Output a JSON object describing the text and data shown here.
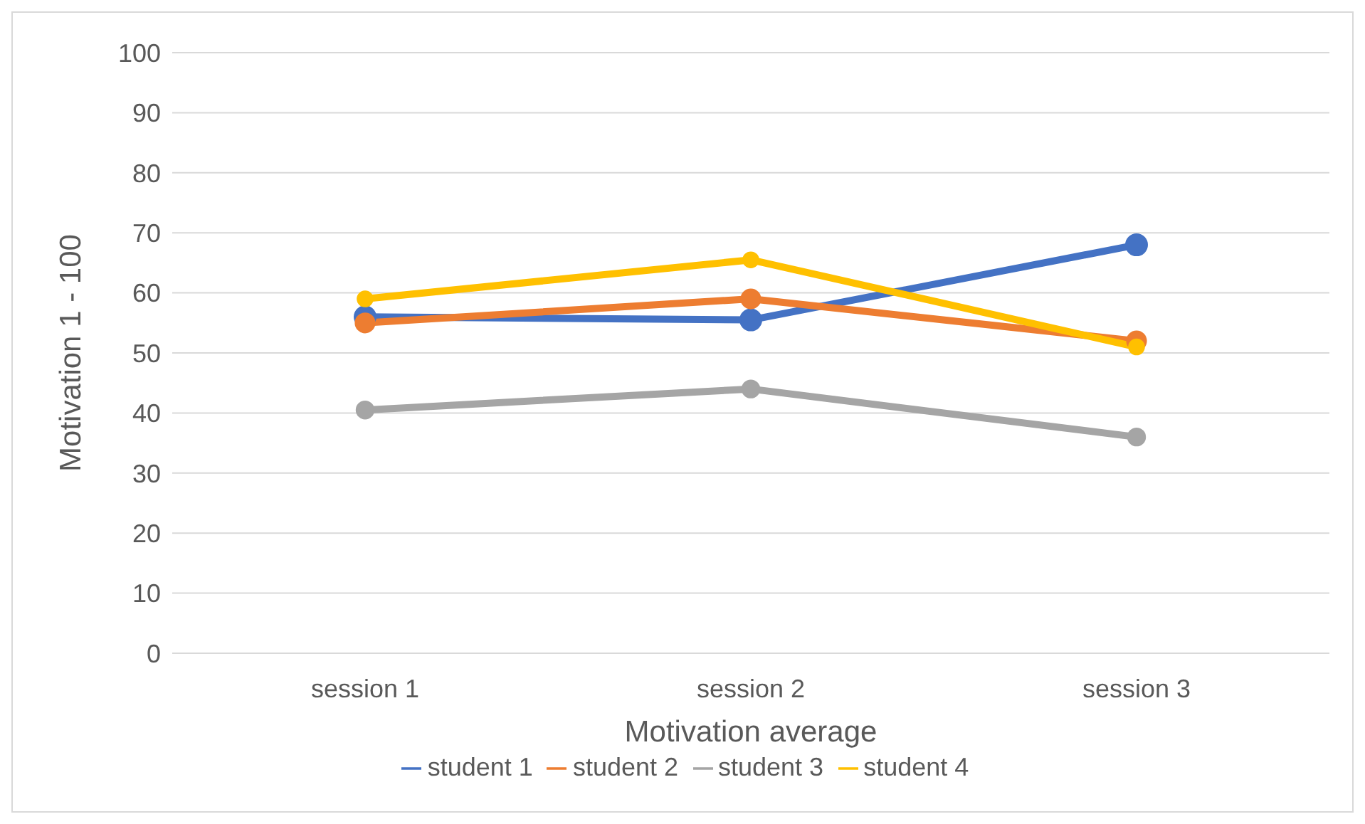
{
  "chart_data": {
    "type": "line",
    "xlabel": "Motivation average",
    "ylabel": "Motivation 1 - 100",
    "categories": [
      "session 1",
      "session 2",
      "session 3"
    ],
    "series": [
      {
        "name": "student 1",
        "color": "#4472c4",
        "values": [
          56,
          55.5,
          68
        ]
      },
      {
        "name": "student 2",
        "color": "#ed7d31",
        "values": [
          55,
          59,
          52
        ]
      },
      {
        "name": "student 3",
        "color": "#a5a5a5",
        "values": [
          40.5,
          44,
          36
        ]
      },
      {
        "name": "student 4",
        "color": "#ffc000",
        "values": [
          59,
          65.5,
          51
        ]
      }
    ],
    "ylim": [
      0,
      100
    ],
    "yticks": [
      0,
      10,
      20,
      30,
      40,
      50,
      60,
      70,
      80,
      90,
      100
    ],
    "grid": "y",
    "legend": "bottom",
    "marker": "circle",
    "line_style": "solid"
  }
}
